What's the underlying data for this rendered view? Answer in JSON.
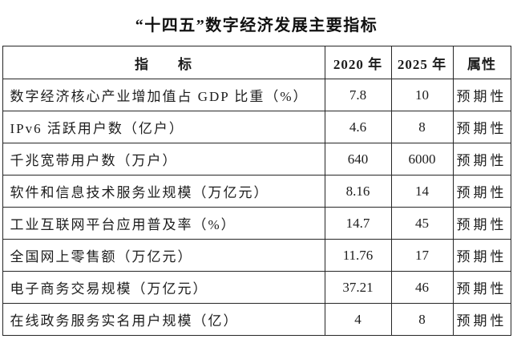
{
  "title": "“十四五”数字经济发展主要指标",
  "table": {
    "headers": {
      "indicator": "指　　标",
      "y2020": "2020 年",
      "y2025": "2025 年",
      "attribute": "属性"
    },
    "rows": [
      {
        "indicator": "数字经济核心产业增加值占 GDP 比重（%）",
        "y2020": "7.8",
        "y2025": "10",
        "attribute": "预期性"
      },
      {
        "indicator": "IPv6 活跃用户数（亿户）",
        "y2020": "4.6",
        "y2025": "8",
        "attribute": "预期性"
      },
      {
        "indicator": "千兆宽带用户数（万户）",
        "y2020": "640",
        "y2025": "6000",
        "attribute": "预期性"
      },
      {
        "indicator": "软件和信息技术服务业规模（万亿元）",
        "y2020": "8.16",
        "y2025": "14",
        "attribute": "预期性"
      },
      {
        "indicator": "工业互联网平台应用普及率（%）",
        "y2020": "14.7",
        "y2025": "45",
        "attribute": "预期性"
      },
      {
        "indicator": "全国网上零售额（万亿元）",
        "y2020": "11.76",
        "y2025": "17",
        "attribute": "预期性"
      },
      {
        "indicator": "电子商务交易规模（万亿元）",
        "y2020": "37.21",
        "y2025": "46",
        "attribute": "预期性"
      },
      {
        "indicator": "在线政务服务实名用户规模（亿）",
        "y2020": "4",
        "y2025": "8",
        "attribute": "预期性"
      }
    ]
  },
  "colors": {
    "text": "#1c1c1c",
    "border": "#262626",
    "background": "#ffffff"
  }
}
